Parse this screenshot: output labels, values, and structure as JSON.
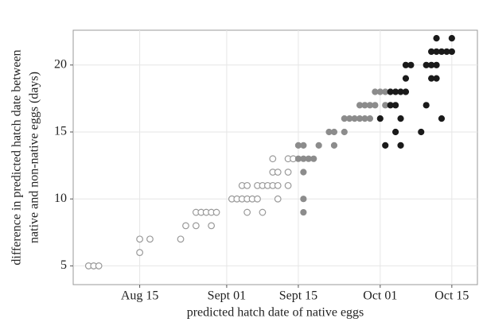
{
  "chart_data": {
    "type": "scatter",
    "xlabel": "predicted hatch date of native eggs",
    "ylabel": [
      "difference in predicted hatch date between",
      "native and non-native eggs (days)"
    ],
    "xlim": [
      "Aug 02",
      "Oct 20"
    ],
    "xticks": [
      "Aug 15",
      "Sept 01",
      "Sept 15",
      "Oct 01",
      "Oct 15"
    ],
    "ylim": [
      3.6,
      22.6
    ],
    "yticks": [
      5,
      10,
      15,
      20
    ],
    "grid": true,
    "series": [
      {
        "color": "#999999",
        "marker": "open",
        "x": [
          "Aug 05",
          "Aug 06",
          "Aug 07",
          "Aug 15",
          "Aug 15",
          "Aug 17",
          "Aug 23",
          "Aug 24",
          "Aug 26",
          "Aug 29",
          "Aug 26",
          "Aug 27",
          "Aug 28",
          "Aug 29",
          "Aug 30",
          "Sept 02",
          "Sept 03",
          "Sept 04",
          "Sept 05",
          "Sept 06",
          "Sept 04",
          "Sept 05",
          "Sept 05",
          "Sept 07",
          "Sept 07",
          "Sept 08",
          "Sept 09",
          "Sept 10",
          "Sept 11",
          "Sept 08",
          "Sept 10",
          "Sept 11",
          "Sept 10",
          "Sept 11",
          "Sept 13",
          "Sept 14",
          "Sept 13",
          "Sept 13"
        ],
        "values": [
          5,
          5,
          5,
          6,
          7,
          7,
          7,
          8,
          8,
          8,
          9,
          9,
          9,
          9,
          9,
          10,
          10,
          10,
          10,
          10,
          11,
          11,
          9,
          10,
          11,
          11,
          11,
          11,
          11,
          9,
          12,
          12,
          13,
          10,
          13,
          13,
          12,
          11
        ]
      },
      {
        "color": "#8c8c8c",
        "marker": "filled",
        "x": [
          "Sept 15",
          "Sept 16",
          "Sept 15",
          "Sept 16",
          "Sept 17",
          "Sept 18",
          "Sept 16",
          "Sept 16",
          "Sept 16",
          "Sept 19",
          "Sept 22",
          "Sept 21",
          "Sept 22",
          "Sept 24",
          "Sept 24",
          "Sept 25",
          "Sept 26",
          "Sept 27",
          "Sept 28",
          "Sept 27",
          "Sept 28",
          "Sept 29",
          "Sept 30",
          "Sept 29",
          "Sept 30",
          "Oct 01",
          "Oct 02",
          "Oct 02"
        ],
        "values": [
          14,
          14,
          13,
          13,
          13,
          13,
          12,
          10,
          9,
          14,
          14,
          15,
          15,
          15,
          16,
          16,
          16,
          16,
          16,
          17,
          17,
          17,
          17,
          16,
          18,
          18,
          18,
          17
        ]
      },
      {
        "color": "#1a1a1a",
        "marker": "filled",
        "x": [
          "Oct 01",
          "Oct 02",
          "Oct 03",
          "Oct 04",
          "Oct 05",
          "Oct 06",
          "Oct 03",
          "Oct 04",
          "Oct 04",
          "Oct 05",
          "Oct 05",
          "Oct 06",
          "Oct 06",
          "Oct 07",
          "Oct 09",
          "Oct 10",
          "Oct 10",
          "Oct 11",
          "Oct 12",
          "Oct 11",
          "Oct 12",
          "Oct 13",
          "Oct 14",
          "Oct 15",
          "Oct 12",
          "Oct 15",
          "Oct 11",
          "Oct 12",
          "Oct 13"
        ],
        "values": [
          16,
          14,
          18,
          18,
          18,
          18,
          17,
          17,
          15,
          14,
          16,
          19,
          20,
          20,
          15,
          17,
          20,
          20,
          20,
          21,
          21,
          21,
          21,
          21,
          22,
          22,
          19,
          19,
          16
        ]
      }
    ]
  }
}
